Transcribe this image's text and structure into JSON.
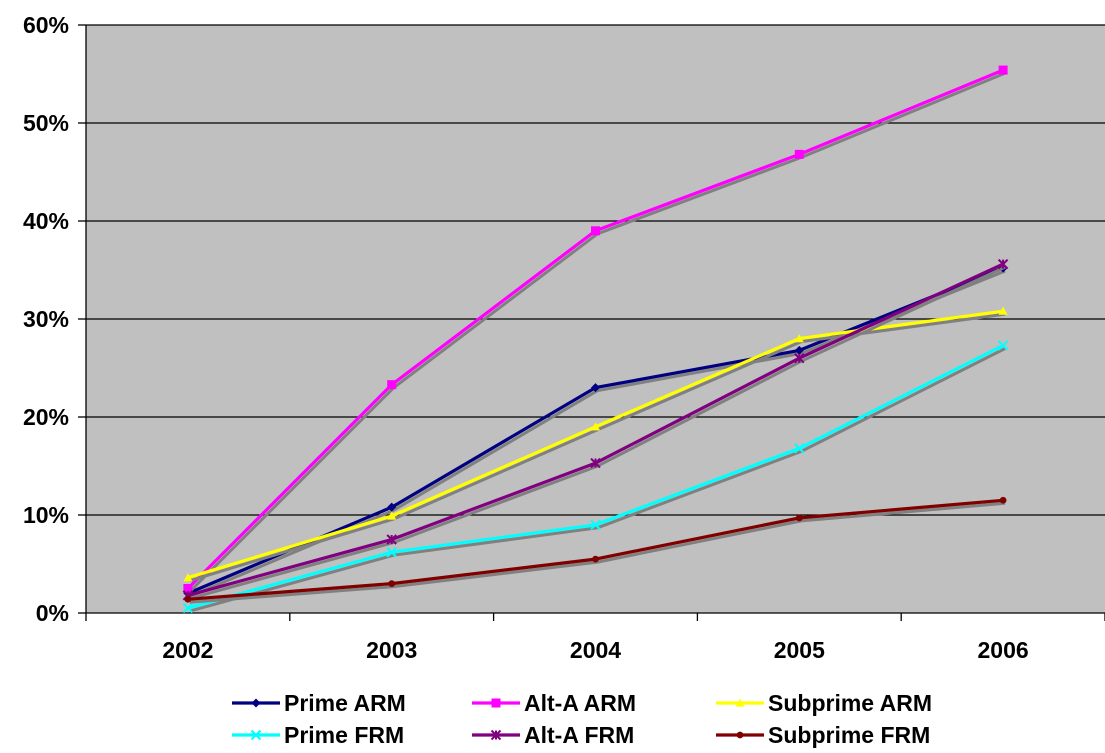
{
  "chart_data": {
    "type": "line",
    "title": "",
    "xlabel": "",
    "ylabel": "",
    "categories": [
      "2002",
      "2003",
      "2004",
      "2005",
      "2006"
    ],
    "ylim": [
      0,
      60
    ],
    "yticks": [
      "0%",
      "10%",
      "20%",
      "30%",
      "40%",
      "50%",
      "60%"
    ],
    "y_unit": "%",
    "grid": "horizontal",
    "plot_background": "#C0C0C0",
    "legend_position": "bottom",
    "series": [
      {
        "name": "Prime ARM",
        "color": "#000080",
        "marker": "diamond",
        "values": [
          2.0,
          10.8,
          23.0,
          26.8,
          35.2
        ]
      },
      {
        "name": "Alt-A ARM",
        "color": "#FF00FF",
        "marker": "square",
        "values": [
          2.5,
          23.3,
          39.0,
          46.8,
          55.4
        ]
      },
      {
        "name": "Subprime ARM",
        "color": "#FFFF00",
        "marker": "triangle",
        "values": [
          3.6,
          9.9,
          19.0,
          28.0,
          30.8
        ]
      },
      {
        "name": "Prime FRM",
        "color": "#00FFFF",
        "marker": "x",
        "values": [
          0.5,
          6.2,
          9.0,
          16.8,
          27.3
        ]
      },
      {
        "name": "Alt-A FRM",
        "color": "#800080",
        "marker": "star",
        "values": [
          1.8,
          7.5,
          15.3,
          26.0,
          35.6
        ]
      },
      {
        "name": "Subprime FRM",
        "color": "#800000",
        "marker": "circle",
        "values": [
          1.4,
          3.0,
          5.5,
          9.7,
          11.5
        ]
      }
    ]
  }
}
